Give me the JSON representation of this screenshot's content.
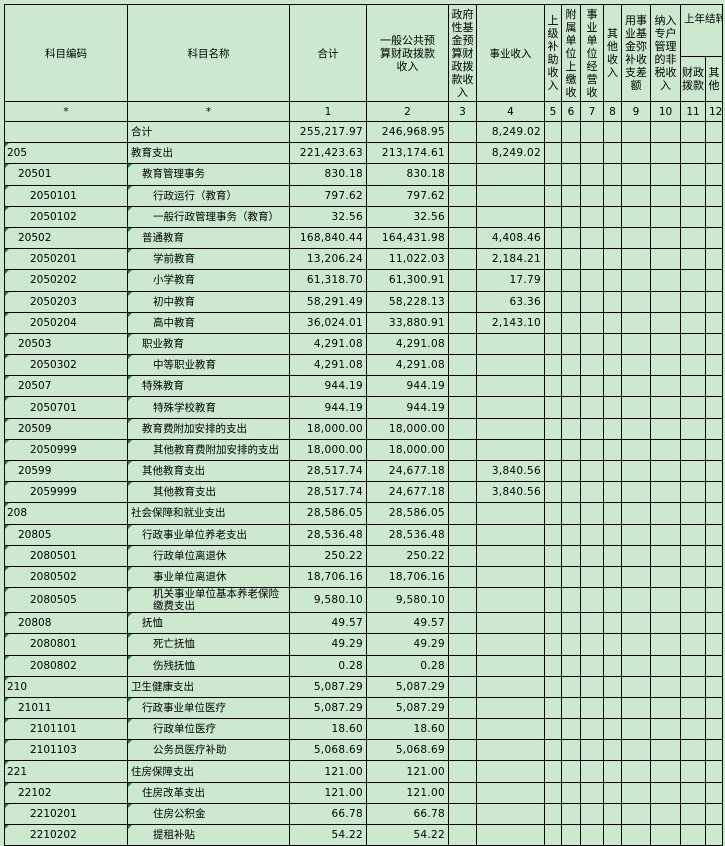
{
  "headers": {
    "code": "科目编码",
    "name": "科目名称",
    "total": "合计",
    "general_budget": "一般公共预算财政拨款收入",
    "gov_fund": "政府性基金预算财政拨款收入",
    "business_income": "事业收入",
    "superior_subsidy": "上级补助收入",
    "affiliated_payment": "附属单位上缴收",
    "business_operation": "事业单位经营收",
    "other_income": "其他收入",
    "fund_offset": "用事业基金弥补收支差额",
    "non_tax": "纳入专户管理的非税收入",
    "carryover": "上年结转",
    "carryover_fiscal": "财政拨款",
    "carryover_other": "其他"
  },
  "index_row": [
    "*",
    "*",
    "1",
    "2",
    "3",
    "4",
    "5",
    "6",
    "7",
    "8",
    "9",
    "10",
    "11",
    "12"
  ],
  "rows": [
    {
      "code": "",
      "name": "合计",
      "level": 1,
      "total": "255,217.97",
      "general": "246,968.95",
      "business": "8,249.02"
    },
    {
      "code": "205",
      "name": "教育支出",
      "level": 1,
      "total": "221,423.63",
      "general": "213,174.61",
      "business": "8,249.02"
    },
    {
      "code": "20501",
      "name": "教育管理事务",
      "level": 2,
      "total": "830.18",
      "general": "830.18",
      "business": ""
    },
    {
      "code": "2050101",
      "name": "行政运行（教育）",
      "level": 3,
      "total": "797.62",
      "general": "797.62",
      "business": ""
    },
    {
      "code": "2050102",
      "name": "一般行政管理事务（教育）",
      "level": 3,
      "total": "32.56",
      "general": "32.56",
      "business": ""
    },
    {
      "code": "20502",
      "name": "普通教育",
      "level": 2,
      "total": "168,840.44",
      "general": "164,431.98",
      "business": "4,408.46"
    },
    {
      "code": "2050201",
      "name": "学前教育",
      "level": 3,
      "total": "13,206.24",
      "general": "11,022.03",
      "business": "2,184.21"
    },
    {
      "code": "2050202",
      "name": "小学教育",
      "level": 3,
      "total": "61,318.70",
      "general": "61,300.91",
      "business": "17.79"
    },
    {
      "code": "2050203",
      "name": "初中教育",
      "level": 3,
      "total": "58,291.49",
      "general": "58,228.13",
      "business": "63.36"
    },
    {
      "code": "2050204",
      "name": "高中教育",
      "level": 3,
      "total": "36,024.01",
      "general": "33,880.91",
      "business": "2,143.10"
    },
    {
      "code": "20503",
      "name": "职业教育",
      "level": 2,
      "total": "4,291.08",
      "general": "4,291.08",
      "business": ""
    },
    {
      "code": "2050302",
      "name": "中等职业教育",
      "level": 3,
      "total": "4,291.08",
      "general": "4,291.08",
      "business": ""
    },
    {
      "code": "20507",
      "name": "特殊教育",
      "level": 2,
      "total": "944.19",
      "general": "944.19",
      "business": ""
    },
    {
      "code": "2050701",
      "name": "特殊学校教育",
      "level": 3,
      "total": "944.19",
      "general": "944.19",
      "business": ""
    },
    {
      "code": "20509",
      "name": "教育费附加安排的支出",
      "level": 2,
      "total": "18,000.00",
      "general": "18,000.00",
      "business": ""
    },
    {
      "code": "2050999",
      "name": "其他教育费附加安排的支出",
      "level": 3,
      "total": "18,000.00",
      "general": "18,000.00",
      "business": ""
    },
    {
      "code": "20599",
      "name": "其他教育支出",
      "level": 2,
      "total": "28,517.74",
      "general": "24,677.18",
      "business": "3,840.56"
    },
    {
      "code": "2059999",
      "name": "其他教育支出",
      "level": 3,
      "total": "28,517.74",
      "general": "24,677.18",
      "business": "3,840.56"
    },
    {
      "code": "208",
      "name": "社会保障和就业支出",
      "level": 1,
      "total": "28,586.05",
      "general": "28,586.05",
      "business": ""
    },
    {
      "code": "20805",
      "name": "行政事业单位养老支出",
      "level": 2,
      "total": "28,536.48",
      "general": "28,536.48",
      "business": ""
    },
    {
      "code": "2080501",
      "name": "行政单位离退休",
      "level": 3,
      "total": "250.22",
      "general": "250.22",
      "business": ""
    },
    {
      "code": "2080502",
      "name": "事业单位离退休",
      "level": 3,
      "total": "18,706.16",
      "general": "18,706.16",
      "business": ""
    },
    {
      "code": "2080505",
      "name": "机关事业单位基本养老保险缴费支出",
      "level": 3,
      "total": "9,580.10",
      "general": "9,580.10",
      "business": ""
    },
    {
      "code": "20808",
      "name": "抚恤",
      "level": 2,
      "total": "49.57",
      "general": "49.57",
      "business": ""
    },
    {
      "code": "2080801",
      "name": "死亡抚恤",
      "level": 3,
      "total": "49.29",
      "general": "49.29",
      "business": ""
    },
    {
      "code": "2080802",
      "name": "伤残抚恤",
      "level": 3,
      "total": "0.28",
      "general": "0.28",
      "business": ""
    },
    {
      "code": "210",
      "name": "卫生健康支出",
      "level": 1,
      "total": "5,087.29",
      "general": "5,087.29",
      "business": ""
    },
    {
      "code": "21011",
      "name": "行政事业单位医疗",
      "level": 2,
      "total": "5,087.29",
      "general": "5,087.29",
      "business": ""
    },
    {
      "code": "2101101",
      "name": "行政单位医疗",
      "level": 3,
      "total": "18.60",
      "general": "18.60",
      "business": ""
    },
    {
      "code": "2101103",
      "name": "公务员医疗补助",
      "level": 3,
      "total": "5,068.69",
      "general": "5,068.69",
      "business": ""
    },
    {
      "code": "221",
      "name": "住房保障支出",
      "level": 1,
      "total": "121.00",
      "general": "121.00",
      "business": ""
    },
    {
      "code": "22102",
      "name": "住房改革支出",
      "level": 2,
      "total": "121.00",
      "general": "121.00",
      "business": ""
    },
    {
      "code": "2210201",
      "name": "住房公积金",
      "level": 3,
      "total": "66.78",
      "general": "66.78",
      "business": ""
    },
    {
      "code": "2210202",
      "name": "提租补贴",
      "level": 3,
      "total": "54.22",
      "general": "54.22",
      "business": ""
    }
  ],
  "colors": {
    "background": "#cce8cf",
    "grid": "#000000",
    "comment_marker": "#1a8a2a"
  }
}
